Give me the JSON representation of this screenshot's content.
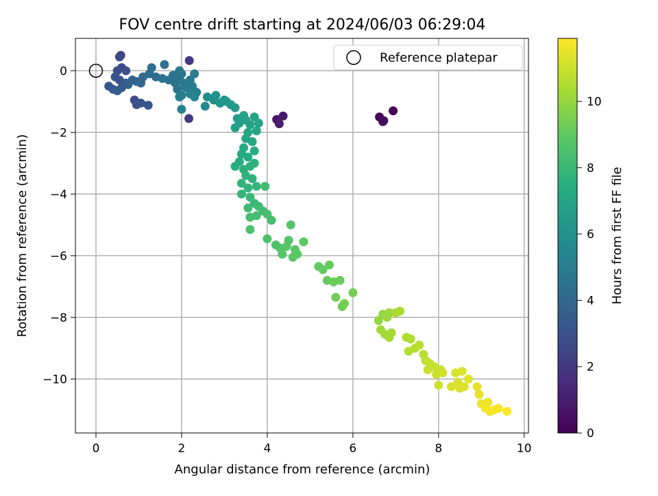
{
  "chart_data": {
    "type": "scatter",
    "title": "FOV centre drift starting at 2024/06/03 06:29:04",
    "xlabel": "Angular distance from reference (arcmin)",
    "ylabel": "Rotation from reference (arcmin)",
    "xlim": [
      -0.48,
      10.1
    ],
    "ylim": [
      -11.75,
      1.05
    ],
    "xticks": [
      0,
      2,
      4,
      6,
      8,
      10
    ],
    "yticks": [
      0,
      -2,
      -4,
      -6,
      -8,
      -10
    ],
    "xtick_labels": [
      "0",
      "2",
      "4",
      "6",
      "8",
      "10"
    ],
    "ytick_labels": [
      "0",
      "−2",
      "−4",
      "−6",
      "−8",
      "−10"
    ],
    "grid": true,
    "legend": {
      "placement": "top-right",
      "entries": [
        "Reference platepar"
      ]
    },
    "reference_point": {
      "x": 0,
      "y": 0
    },
    "colorbar": {
      "label": "Hours from first FF file",
      "range": [
        0,
        11.9
      ],
      "ticks": [
        0,
        2,
        4,
        6,
        8,
        10
      ],
      "tick_labels": [
        "0",
        "2",
        "4",
        "6",
        "8",
        "10"
      ],
      "colormap": "viridis"
    },
    "series": [
      {
        "columns": [
          "x",
          "y",
          "hours"
        ],
        "points": [
          [
            6.94,
            -1.3,
            0.1
          ],
          [
            6.62,
            -1.5,
            0.2
          ],
          [
            6.7,
            -1.65,
            0.3
          ],
          [
            6.72,
            -1.62,
            0.4
          ],
          [
            4.22,
            -1.58,
            0.8
          ],
          [
            4.37,
            -1.47,
            0.9
          ],
          [
            4.28,
            -1.72,
            1.0
          ],
          [
            2.18,
            0.33,
            2.0
          ],
          [
            2.17,
            -1.55,
            2.1
          ],
          [
            0.58,
            0.5,
            2.5
          ],
          [
            0.55,
            0.45,
            2.6
          ],
          [
            0.6,
            0.1,
            2.7
          ],
          [
            0.5,
            0.0,
            2.8
          ],
          [
            0.7,
            0.0,
            2.9
          ],
          [
            0.45,
            -0.2,
            3.0
          ],
          [
            0.55,
            -0.3,
            3.1
          ],
          [
            0.3,
            -0.5,
            3.2
          ],
          [
            0.4,
            -0.6,
            3.3
          ],
          [
            0.6,
            -0.55,
            3.4
          ],
          [
            0.5,
            -0.65,
            3.5
          ],
          [
            0.7,
            -0.4,
            3.6
          ],
          [
            0.85,
            -0.3,
            3.7
          ],
          [
            0.75,
            -0.45,
            3.8
          ],
          [
            0.95,
            -0.35,
            3.9
          ],
          [
            1.05,
            -0.4,
            4.0
          ],
          [
            0.9,
            -0.95,
            2.9
          ],
          [
            0.95,
            -1.1,
            3.0
          ],
          [
            1.05,
            -1.05,
            3.1
          ],
          [
            1.22,
            -1.12,
            3.2
          ],
          [
            1.1,
            -0.2,
            4.1
          ],
          [
            1.25,
            -0.1,
            4.2
          ],
          [
            1.3,
            0.1,
            4.3
          ],
          [
            1.4,
            -0.2,
            4.3
          ],
          [
            1.55,
            -0.25,
            4.4
          ],
          [
            1.6,
            0.2,
            4.4
          ],
          [
            1.7,
            -0.3,
            4.5
          ],
          [
            1.8,
            -0.15,
            4.5
          ],
          [
            1.85,
            -0.4,
            4.6
          ],
          [
            1.9,
            -0.6,
            4.6
          ],
          [
            1.95,
            -0.2,
            4.7
          ],
          [
            2.0,
            -0.1,
            4.7
          ],
          [
            1.95,
            0.0,
            4.8
          ],
          [
            2.05,
            -0.4,
            4.8
          ],
          [
            2.1,
            -0.55,
            4.9
          ],
          [
            2.2,
            -0.3,
            4.9
          ],
          [
            2.25,
            -0.5,
            5.0
          ],
          [
            2.3,
            -0.1,
            5.0
          ],
          [
            2.35,
            -0.7,
            5.1
          ],
          [
            2.0,
            -0.8,
            5.1
          ],
          [
            1.95,
            -0.85,
            5.2
          ],
          [
            2.2,
            -0.75,
            5.2
          ],
          [
            2.3,
            -0.85,
            5.3
          ],
          [
            2.0,
            -1.25,
            5.3
          ],
          [
            2.55,
            -1.15,
            5.6
          ],
          [
            2.6,
            -0.85,
            5.8
          ],
          [
            2.75,
            -0.95,
            5.9
          ],
          [
            2.8,
            -0.8,
            6.0
          ],
          [
            2.9,
            -1.05,
            6.1
          ],
          [
            3.0,
            -0.95,
            6.2
          ],
          [
            3.05,
            -1.0,
            6.3
          ],
          [
            3.15,
            -1.1,
            6.4
          ],
          [
            3.25,
            -1.2,
            6.5
          ],
          [
            3.3,
            -1.55,
            6.6
          ],
          [
            3.35,
            -1.7,
            6.6
          ],
          [
            3.25,
            -1.85,
            6.7
          ],
          [
            3.45,
            -1.45,
            6.8
          ],
          [
            3.5,
            -1.6,
            6.8
          ],
          [
            3.6,
            -1.75,
            6.9
          ],
          [
            3.7,
            -1.5,
            6.9
          ],
          [
            3.8,
            -1.7,
            7.0
          ],
          [
            3.75,
            -1.95,
            7.0
          ],
          [
            3.55,
            -2.0,
            7.1
          ],
          [
            3.5,
            -2.2,
            7.1
          ],
          [
            3.65,
            -2.3,
            7.2
          ],
          [
            3.45,
            -2.5,
            7.2
          ],
          [
            3.4,
            -2.7,
            7.3
          ],
          [
            3.55,
            -2.8,
            7.3
          ],
          [
            3.7,
            -2.6,
            7.4
          ],
          [
            3.35,
            -2.95,
            7.4
          ],
          [
            3.25,
            -3.1,
            7.5
          ],
          [
            3.45,
            -3.2,
            7.5
          ],
          [
            3.6,
            -3.1,
            7.6
          ],
          [
            3.7,
            -3.0,
            7.6
          ],
          [
            3.5,
            -3.4,
            7.7
          ],
          [
            3.65,
            -3.5,
            7.7
          ],
          [
            3.4,
            -3.65,
            7.8
          ],
          [
            3.55,
            -3.8,
            7.8
          ],
          [
            3.75,
            -3.75,
            7.9
          ],
          [
            3.4,
            -4.0,
            7.9
          ],
          [
            3.6,
            -4.1,
            8.0
          ],
          [
            3.7,
            -4.3,
            8.0
          ],
          [
            3.55,
            -4.45,
            8.1
          ],
          [
            3.8,
            -4.4,
            8.1
          ],
          [
            3.95,
            -3.75,
            8.2
          ],
          [
            3.9,
            -4.55,
            8.2
          ],
          [
            3.75,
            -4.7,
            8.3
          ],
          [
            3.6,
            -4.75,
            8.3
          ],
          [
            4.0,
            -4.65,
            8.4
          ],
          [
            4.1,
            -4.85,
            8.4
          ],
          [
            3.6,
            -5.15,
            8.5
          ],
          [
            4.0,
            -5.45,
            8.5
          ],
          [
            4.2,
            -5.65,
            8.6
          ],
          [
            4.3,
            -5.75,
            8.6
          ],
          [
            4.35,
            -5.95,
            8.7
          ],
          [
            4.5,
            -5.5,
            8.7
          ],
          [
            4.65,
            -5.8,
            8.8
          ],
          [
            4.6,
            -6.05,
            8.8
          ],
          [
            4.7,
            -5.95,
            8.9
          ],
          [
            4.85,
            -5.55,
            8.9
          ],
          [
            4.55,
            -5.0,
            8.7
          ],
          [
            4.45,
            -5.7,
            8.8
          ],
          [
            5.2,
            -6.35,
            9.0
          ],
          [
            5.3,
            -6.45,
            9.0
          ],
          [
            5.45,
            -6.3,
            9.1
          ],
          [
            5.4,
            -6.8,
            9.1
          ],
          [
            5.55,
            -6.85,
            9.2
          ],
          [
            5.7,
            -6.8,
            9.2
          ],
          [
            5.6,
            -7.35,
            9.3
          ],
          [
            5.75,
            -7.65,
            9.3
          ],
          [
            5.8,
            -7.55,
            9.4
          ],
          [
            6.0,
            -7.2,
            9.4
          ],
          [
            6.6,
            -8.1,
            10.0
          ],
          [
            6.7,
            -7.9,
            10.0
          ],
          [
            6.8,
            -8.0,
            10.1
          ],
          [
            6.85,
            -7.85,
            10.1
          ],
          [
            6.65,
            -8.4,
            10.2
          ],
          [
            6.75,
            -8.55,
            10.2
          ],
          [
            6.85,
            -8.65,
            10.3
          ],
          [
            6.9,
            -8.5,
            10.3
          ],
          [
            7.0,
            -7.85,
            10.4
          ],
          [
            7.1,
            -7.8,
            10.4
          ],
          [
            7.25,
            -8.65,
            10.5
          ],
          [
            7.35,
            -8.7,
            10.5
          ],
          [
            7.3,
            -9.1,
            10.6
          ],
          [
            7.45,
            -9.0,
            10.6
          ],
          [
            7.55,
            -8.9,
            10.7
          ],
          [
            7.65,
            -9.2,
            10.7
          ],
          [
            7.7,
            -9.4,
            10.8
          ],
          [
            7.8,
            -9.5,
            10.8
          ],
          [
            7.75,
            -9.7,
            10.9
          ],
          [
            7.9,
            -9.6,
            10.9
          ],
          [
            7.95,
            -9.85,
            11.0
          ],
          [
            8.05,
            -9.7,
            11.0
          ],
          [
            8.1,
            -9.8,
            11.1
          ],
          [
            8.0,
            -10.2,
            11.1
          ],
          [
            8.3,
            -10.25,
            11.2
          ],
          [
            8.45,
            -10.1,
            11.2
          ],
          [
            8.5,
            -10.3,
            11.3
          ],
          [
            8.6,
            -10.25,
            11.3
          ],
          [
            8.4,
            -9.8,
            11.2
          ],
          [
            8.55,
            -9.75,
            11.3
          ],
          [
            8.7,
            -10.0,
            11.4
          ],
          [
            8.9,
            -10.25,
            11.5
          ],
          [
            8.95,
            -10.5,
            11.5
          ],
          [
            9.0,
            -10.8,
            11.6
          ],
          [
            9.1,
            -10.95,
            11.7
          ],
          [
            9.2,
            -11.05,
            11.7
          ],
          [
            9.3,
            -11.0,
            11.8
          ],
          [
            9.4,
            -10.95,
            11.8
          ],
          [
            9.6,
            -11.05,
            11.9
          ],
          [
            9.15,
            -10.75,
            11.6
          ]
        ]
      }
    ]
  }
}
